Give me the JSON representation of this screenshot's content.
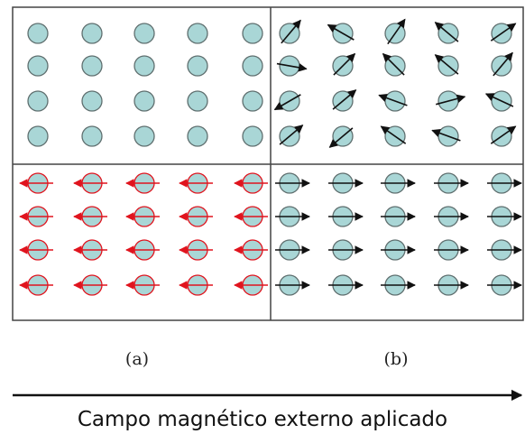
{
  "panels": {
    "a_label": "(a)",
    "b_label": "(b)"
  },
  "caption": "Campo magnético externo aplicado",
  "colors": {
    "particle_fill": "#a9d6d6",
    "particle_stroke": "#5f6f6f",
    "red_arrow": "#e0141e",
    "black_arrow": "#111111",
    "panel_border": "#444444"
  },
  "grid": {
    "rows_per_quadrant": 4,
    "cols_per_panel": 5
  },
  "quadrants": [
    {
      "panel": "a",
      "position": "top",
      "state": "no-moment"
    },
    {
      "panel": "a",
      "position": "bottom",
      "state": "aligned",
      "direction": "left",
      "color": "red"
    },
    {
      "panel": "b",
      "position": "top",
      "state": "random"
    },
    {
      "panel": "b",
      "position": "bottom",
      "state": "aligned",
      "direction": "right",
      "color": "black"
    }
  ],
  "random_angles_deg": [
    [
      50,
      150,
      55,
      140,
      35
    ],
    [
      -10,
      45,
      135,
      140,
      50
    ],
    [
      -150,
      40,
      160,
      15,
      155
    ],
    [
      40,
      -140,
      145,
      160,
      35
    ]
  ]
}
